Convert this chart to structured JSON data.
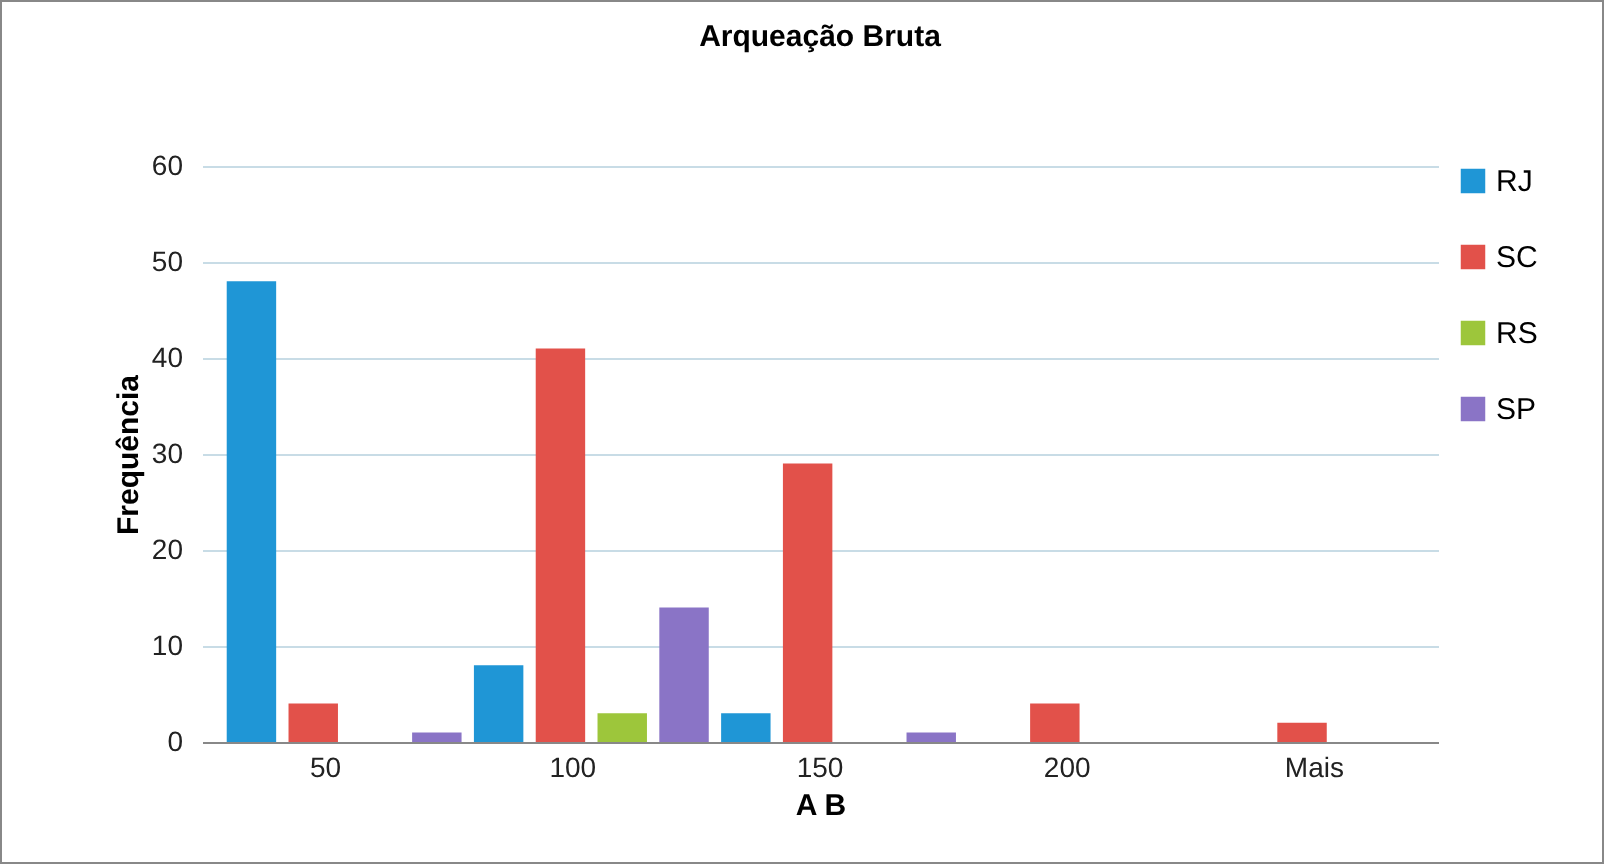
{
  "chart_data": {
    "type": "bar",
    "title": "Arqueação Bruta",
    "xlabel": "A B",
    "ylabel": "Frequência",
    "categories": [
      "50",
      "100",
      "150",
      "200",
      "Mais"
    ],
    "series": [
      {
        "name": "RJ",
        "color": "#1f96d6",
        "values": [
          48,
          8,
          3,
          0,
          0
        ]
      },
      {
        "name": "SC",
        "color": "#e2514a",
        "values": [
          4,
          41,
          29,
          4,
          2
        ]
      },
      {
        "name": "RS",
        "color": "#9dc63b",
        "values": [
          0,
          3,
          0,
          0,
          0
        ]
      },
      {
        "name": "SP",
        "color": "#8a74c6",
        "values": [
          1,
          14,
          1,
          0,
          0
        ]
      }
    ],
    "ylim": [
      0,
      60
    ],
    "yticks": [
      0,
      10,
      20,
      30,
      40,
      50,
      60
    ],
    "grid": "y",
    "legend": "right"
  }
}
